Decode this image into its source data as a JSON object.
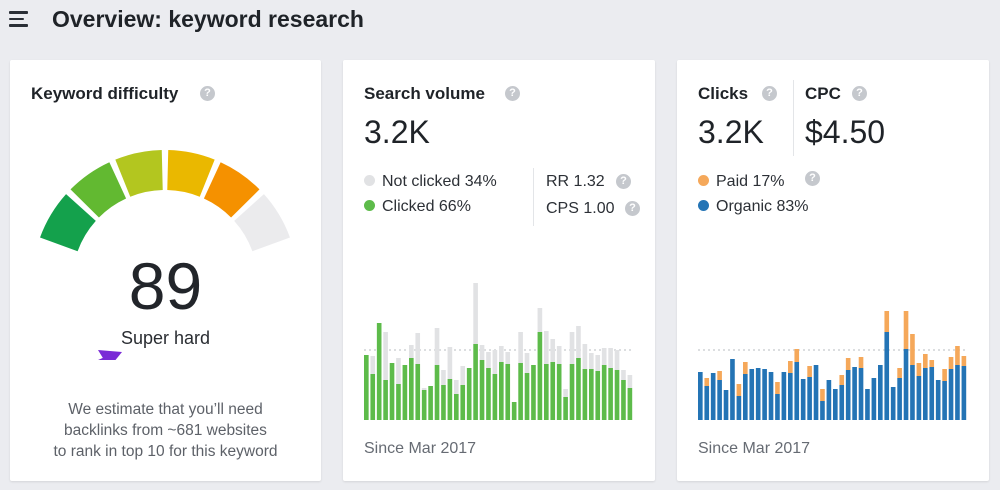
{
  "header": {
    "title": "Overview: keyword research"
  },
  "icons": {
    "menu": "hamburger-menu-icon",
    "help": "question-mark-icon"
  },
  "help_glyph": "?",
  "keyword_difficulty": {
    "title": "Keyword difficulty",
    "score": "89",
    "score_value": 89,
    "label": "Super hard",
    "desc_line1": "We estimate that you’ll need",
    "desc_line2": "backlinks from ~681 websites",
    "desc_line3": "to rank in top 10 for this keyword",
    "gauge_colors": [
      "#14a14c",
      "#62b931",
      "#b3c61f",
      "#eab800",
      "#f59100",
      "#ebebed"
    ],
    "arrow_color": "#7a2ad6"
  },
  "search_volume": {
    "title": "Search volume",
    "value": "3.2K",
    "legend": [
      {
        "label": "Not clicked 34%",
        "color": "#e1e2e4"
      },
      {
        "label": "Clicked 66%",
        "color": "#5dbb4a"
      }
    ],
    "rr": "RR 1.32",
    "cps": "CPS 1.00",
    "since": "Since Mar 2017"
  },
  "clicks": {
    "title": "Clicks",
    "value": "3.2K",
    "cpc_title": "CPC",
    "cpc_value": "$4.50",
    "legend": [
      {
        "label": "Paid 17%",
        "color": "#f5a85a"
      },
      {
        "label": "Organic 83%",
        "color": "#2474b5"
      }
    ],
    "since": "Since Mar 2017"
  },
  "chart_data": [
    {
      "type": "bar",
      "stacked": true,
      "series": [
        {
          "name": "Clicked",
          "color": "#5dbb4a",
          "values": [
            65,
            46,
            97,
            40,
            57,
            36,
            55,
            62,
            56,
            30,
            34,
            55,
            35,
            41,
            26,
            35,
            52,
            76,
            60,
            52,
            46,
            58,
            56,
            18,
            57,
            47,
            55,
            88,
            56,
            58,
            56,
            23,
            56,
            62,
            51,
            51,
            49,
            55,
            52,
            50,
            40,
            32
          ]
        },
        {
          "name": "Not clicked",
          "color": "#e1e2e4",
          "values": [
            0,
            18,
            0,
            48,
            0,
            26,
            0,
            13,
            31,
            2,
            0,
            37,
            15,
            32,
            14,
            19,
            0,
            61,
            15,
            16,
            24,
            16,
            12,
            0,
            31,
            20,
            0,
            24,
            33,
            23,
            18,
            8,
            32,
            32,
            25,
            16,
            16,
            17,
            20,
            20,
            10,
            13
          ]
        }
      ]
    },
    {
      "type": "bar",
      "stacked": true,
      "series": [
        {
          "name": "Organic",
          "color": "#2474b5",
          "values": [
            48,
            34,
            47,
            40,
            30,
            61,
            24,
            46,
            51,
            52,
            51,
            48,
            26,
            48,
            47,
            58,
            41,
            43,
            55,
            19,
            40,
            31,
            35,
            50,
            53,
            52,
            31,
            42,
            55,
            88,
            33,
            42,
            71,
            55,
            44,
            52,
            53,
            40,
            39,
            51,
            55,
            54
          ]
        },
        {
          "name": "Paid",
          "color": "#f5a85a",
          "values": [
            0,
            8,
            0,
            9,
            0,
            0,
            12,
            12,
            0,
            0,
            0,
            0,
            12,
            0,
            12,
            13,
            0,
            11,
            0,
            12,
            0,
            0,
            10,
            12,
            0,
            11,
            0,
            0,
            0,
            21,
            0,
            10,
            38,
            31,
            13,
            14,
            7,
            0,
            12,
            12,
            19,
            10
          ]
        }
      ]
    }
  ]
}
